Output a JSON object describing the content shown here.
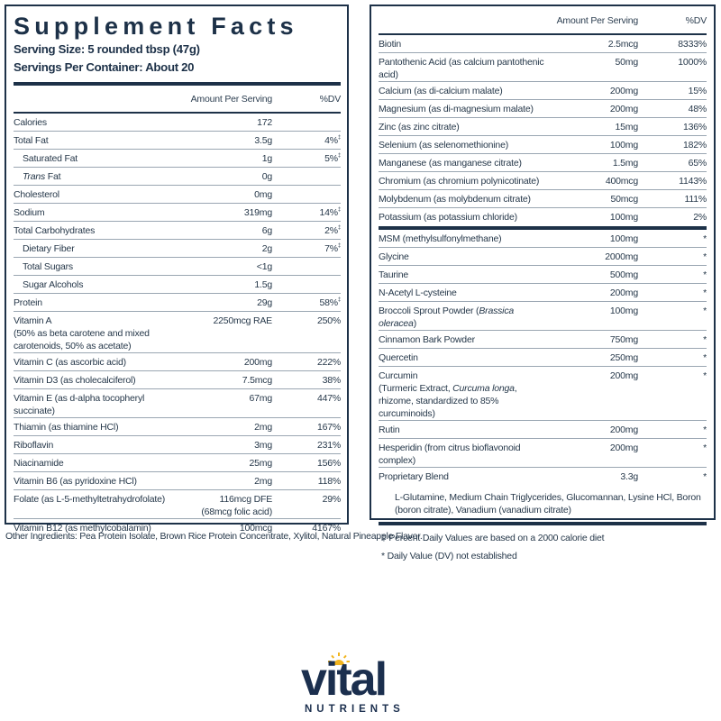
{
  "label": {
    "title": "Supplement Facts",
    "serving_size": "Serving Size: 5 rounded tbsp (47g)",
    "servings_per_container": "Servings Per Container: About 20",
    "header": {
      "amount": "Amount Per Serving",
      "dv": "%DV"
    }
  },
  "left_rows": [
    {
      "name": "Calories",
      "amount": "172",
      "dv": ""
    },
    {
      "name": "Total Fat",
      "amount": "3.5g",
      "dv": "4%",
      "mark": "‡"
    },
    {
      "name": "Saturated Fat",
      "amount": "1g",
      "dv": "5%",
      "mark": "‡",
      "indent": true
    },
    {
      "name_italic": "Trans",
      "name": " Fat",
      "amount": "0g",
      "dv": "",
      "indent": true
    },
    {
      "name": "Cholesterol",
      "amount": "0mg",
      "dv": ""
    },
    {
      "name": "Sodium",
      "amount": "319mg",
      "dv": "14%",
      "mark": "‡"
    },
    {
      "name": "Total Carbohydrates",
      "amount": "6g",
      "dv": "2%",
      "mark": "‡"
    },
    {
      "name": "Dietary Fiber",
      "amount": "2g",
      "dv": "7%",
      "mark": "‡",
      "indent": true
    },
    {
      "name": "Total Sugars",
      "amount": "<1g",
      "dv": "",
      "indent": true
    },
    {
      "name": "Sugar Alcohols",
      "amount": "1.5g",
      "dv": "",
      "indent": true
    },
    {
      "name": "Protein",
      "amount": "29g",
      "dv": "58%",
      "mark": "‡"
    },
    {
      "name": "Vitamin A",
      "sub": "(50% as beta carotene and mixed carotenoids, 50% as acetate)",
      "amount": "2250mcg RAE",
      "dv": "250%"
    },
    {
      "name": "Vitamin C (as ascorbic acid)",
      "amount": "200mg",
      "dv": "222%"
    },
    {
      "name": "Vitamin D3 (as cholecalciferol)",
      "amount": "7.5mcg",
      "dv": "38%"
    },
    {
      "name": "Vitamin E (as d-alpha tocopheryl succinate)",
      "amount": "67mg",
      "dv": "447%"
    },
    {
      "name": "Thiamin (as thiamine HCl)",
      "amount": "2mg",
      "dv": "167%"
    },
    {
      "name": "Riboflavin",
      "amount": "3mg",
      "dv": "231%"
    },
    {
      "name": "Niacinamide",
      "amount": "25mg",
      "dv": "156%"
    },
    {
      "name": "Vitamin B6 (as pyridoxine HCl)",
      "amount": "2mg",
      "dv": "118%"
    },
    {
      "name": "Folate (as L-5-methyltetrahydrofolate)",
      "amount": "116mcg DFE\n(68mcg folic acid)",
      "dv": "29%"
    },
    {
      "name": "Vitamin B12 (as methylcobalamin)",
      "amount": "100mcg",
      "dv": "4167%"
    }
  ],
  "right_rows_a": [
    {
      "name": "Biotin",
      "amount": "2.5mcg",
      "dv": "8333%"
    },
    {
      "name": "Pantothenic Acid (as calcium pantothenic acid)",
      "amount": "50mg",
      "dv": "1000%"
    },
    {
      "name": "Calcium (as di-calcium malate)",
      "amount": "200mg",
      "dv": "15%"
    },
    {
      "name": "Magnesium (as di-magnesium malate)",
      "amount": "200mg",
      "dv": "48%"
    },
    {
      "name": "Zinc (as zinc citrate)",
      "amount": "15mg",
      "dv": "136%"
    },
    {
      "name": "Selenium (as selenomethionine)",
      "amount": "100mg",
      "dv": "182%"
    },
    {
      "name": "Manganese (as manganese citrate)",
      "amount": "1.5mg",
      "dv": "65%"
    },
    {
      "name": "Chromium (as chromium polynicotinate)",
      "amount": "400mcg",
      "dv": "1143%"
    },
    {
      "name": "Molybdenum (as molybdenum citrate)",
      "amount": "50mcg",
      "dv": "111%"
    },
    {
      "name": "Potassium (as potassium chloride)",
      "amount": "100mg",
      "dv": "2%"
    }
  ],
  "right_rows_b": [
    {
      "name": "MSM (methylsulfonylmethane)",
      "amount": "100mg",
      "dv": "*"
    },
    {
      "name": "Glycine",
      "amount": "2000mg",
      "dv": "*"
    },
    {
      "name": "Taurine",
      "amount": "500mg",
      "dv": "*"
    },
    {
      "name": "N-Acetyl L-cysteine",
      "amount": "200mg",
      "dv": "*"
    },
    {
      "name": "Broccoli Sprout Powder (",
      "name_italic_after": "Brassica oleracea",
      "name_tail": ")",
      "amount": "100mg",
      "dv": "*"
    },
    {
      "name": "Cinnamon Bark Powder",
      "amount": "750mg",
      "dv": "*"
    },
    {
      "name": "Quercetin",
      "amount": "250mg",
      "dv": "*"
    },
    {
      "name": "Curcumin",
      "sub_pre": "(Turmeric Extract, ",
      "sub_italic": "Curcuma longa",
      "sub_post": ", rhizome, standardized to 85% curcuminoids)",
      "amount": "200mg",
      "dv": "*"
    },
    {
      "name": "Rutin",
      "amount": "200mg",
      "dv": "*"
    },
    {
      "name": "Hesperidin (from citrus bioflavonoid complex)",
      "amount": "200mg",
      "dv": "*"
    },
    {
      "name": "Proprietary Blend",
      "amount": "3.3g",
      "dv": "*"
    }
  ],
  "blend_contents": "L-Glutamine, Medium Chain Triglycerides, Glucomannan, Lysine HCl, Boron (boron citrate), Vanadium (vanadium citrate)",
  "footnotes": {
    "percent_dv": "‡ Percent Daily Values are based on a 2000 calorie diet",
    "not_established": "* Daily Value (DV) not established"
  },
  "other_ingredients": "Other Ingredients: Pea Protein Isolate, Brown Rice Protein Concentrate, Xylitol, Natural Pineapple Flavor.",
  "brand": {
    "word": "vital",
    "sub": "NUTRIENTS",
    "primary_color": "#1b2f4e",
    "sun_color": "#f2b51f"
  }
}
